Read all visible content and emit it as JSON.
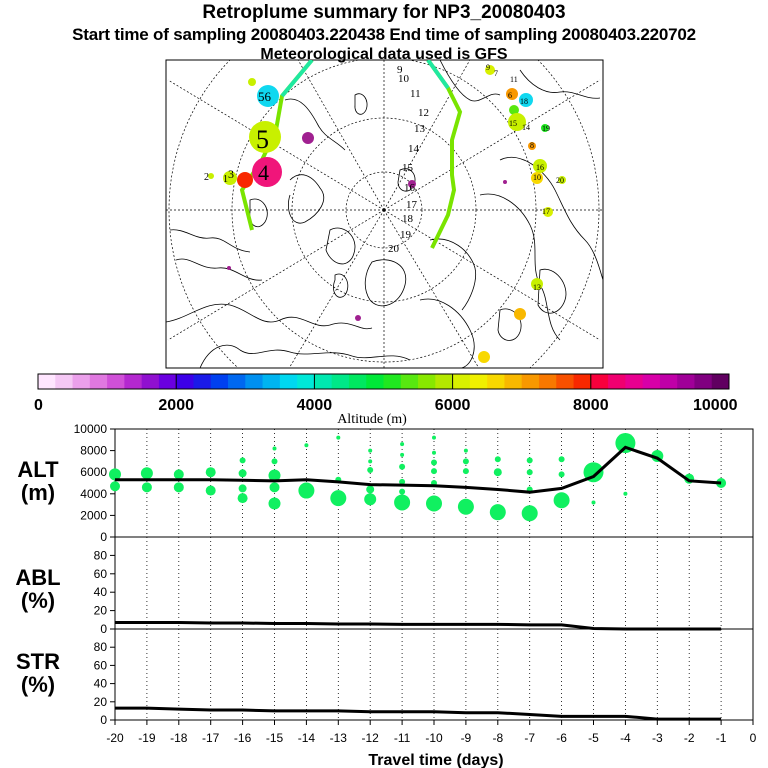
{
  "header": {
    "title": "Retroplume summary for NP3_20080403",
    "sampling_line": "Start time of sampling 20080403.220438     End time of sampling 20080403.220702",
    "met_line": "Meteorological data used is GFS"
  },
  "colorbar": {
    "axis_label": "Altitude (m)",
    "ticks": [
      "0",
      "2000",
      "4000",
      "6000",
      "8000",
      "10000"
    ],
    "tick_values": [
      0,
      2000,
      4000,
      6000,
      8000,
      10000
    ],
    "range": [
      0,
      10000
    ],
    "colors": [
      "#ffe6ff",
      "#f5c8f5",
      "#eba0eb",
      "#e078e0",
      "#d050d8",
      "#b428d0",
      "#9010d0",
      "#6a00e0",
      "#3c00e8",
      "#1a1ae8",
      "#0040f0",
      "#0068f0",
      "#0090f0",
      "#00b4f0",
      "#00d8f0",
      "#00e8d8",
      "#00e8b0",
      "#00e888",
      "#00e860",
      "#00e838",
      "#20e820",
      "#58e810",
      "#88e800",
      "#b4e800",
      "#d8f000",
      "#f0f000",
      "#f8d800",
      "#f8b800",
      "#f89800",
      "#f87800",
      "#f85000",
      "#f82800",
      "#f8003c",
      "#f00070",
      "#e80090",
      "#d800a8",
      "#c000a8",
      "#a00098",
      "#800080",
      "#600060"
    ]
  },
  "map": {
    "trajectory_labels": [
      "1",
      "2",
      "3",
      "4",
      "5",
      "56"
    ],
    "day_labels": [
      "9",
      "10",
      "11",
      "12",
      "13",
      "14",
      "15",
      "16",
      "17",
      "18",
      "19",
      "20"
    ],
    "small_labels": [
      "7",
      "6",
      "11",
      "13",
      "15",
      "16",
      "17",
      "18",
      "19",
      "20",
      "14",
      "10",
      "8",
      "9"
    ],
    "cluster_colors": {
      "green_line": "#7ae400",
      "cyan_line": "#20e8a0",
      "magenta": "#f0157a",
      "yellow_green": "#c8f000",
      "cyan": "#10d8f0",
      "orange": "#f89800",
      "red": "#f82800",
      "purple": "#a02090"
    }
  },
  "chart_data": [
    {
      "type": "scatter",
      "name": "ALT",
      "ylabel": "ALT (m)",
      "ylabel_lines": [
        "ALT",
        "(m)"
      ],
      "ylim": [
        0,
        10000
      ],
      "yticks": [
        0,
        2000,
        4000,
        6000,
        8000,
        10000
      ],
      "ytick_labels": [
        "0",
        "2000",
        "4000",
        "6000",
        "8000",
        "10000"
      ],
      "xlim": [
        -20,
        0
      ],
      "line": {
        "x": [
          -20,
          -19,
          -18,
          -17,
          -16,
          -15,
          -14,
          -13,
          -12,
          -11,
          -10,
          -9,
          -8,
          -7,
          -6,
          -5,
          -4,
          -3,
          -2,
          -1
        ],
        "y": [
          5300,
          5300,
          5300,
          5300,
          5250,
          5200,
          5300,
          5100,
          4850,
          4800,
          4750,
          4600,
          4400,
          4150,
          4500,
          5600,
          8300,
          7300,
          5200,
          5000
        ]
      },
      "points": [
        {
          "x": -20,
          "y": 5800,
          "r": 6
        },
        {
          "x": -20,
          "y": 4700,
          "r": 5
        },
        {
          "x": -19,
          "y": 5900,
          "r": 6
        },
        {
          "x": -19,
          "y": 4600,
          "r": 5
        },
        {
          "x": -18,
          "y": 5800,
          "r": 5
        },
        {
          "x": -18,
          "y": 4600,
          "r": 5
        },
        {
          "x": -17,
          "y": 6000,
          "r": 5
        },
        {
          "x": -17,
          "y": 4300,
          "r": 5
        },
        {
          "x": -16,
          "y": 7100,
          "r": 3
        },
        {
          "x": -16,
          "y": 5900,
          "r": 4
        },
        {
          "x": -16,
          "y": 4500,
          "r": 4
        },
        {
          "x": -16,
          "y": 3600,
          "r": 5
        },
        {
          "x": -15,
          "y": 8200,
          "r": 2
        },
        {
          "x": -15,
          "y": 7000,
          "r": 3
        },
        {
          "x": -15,
          "y": 5700,
          "r": 6
        },
        {
          "x": -15,
          "y": 4600,
          "r": 5
        },
        {
          "x": -15,
          "y": 3100,
          "r": 6
        },
        {
          "x": -14,
          "y": 8500,
          "r": 2
        },
        {
          "x": -14,
          "y": 4300,
          "r": 8
        },
        {
          "x": -13,
          "y": 9200,
          "r": 2
        },
        {
          "x": -13,
          "y": 5300,
          "r": 3
        },
        {
          "x": -13,
          "y": 3600,
          "r": 8
        },
        {
          "x": -12,
          "y": 8000,
          "r": 2
        },
        {
          "x": -12,
          "y": 7000,
          "r": 2
        },
        {
          "x": -12,
          "y": 6200,
          "r": 3
        },
        {
          "x": -12,
          "y": 4400,
          "r": 4
        },
        {
          "x": -12,
          "y": 3500,
          "r": 6
        },
        {
          "x": -11,
          "y": 8600,
          "r": 2
        },
        {
          "x": -11,
          "y": 7600,
          "r": 2
        },
        {
          "x": -11,
          "y": 6500,
          "r": 3
        },
        {
          "x": -11,
          "y": 5100,
          "r": 3
        },
        {
          "x": -11,
          "y": 4200,
          "r": 3
        },
        {
          "x": -11,
          "y": 3200,
          "r": 8
        },
        {
          "x": -10,
          "y": 9200,
          "r": 2
        },
        {
          "x": -10,
          "y": 7800,
          "r": 2
        },
        {
          "x": -10,
          "y": 6900,
          "r": 3
        },
        {
          "x": -10,
          "y": 6100,
          "r": 3
        },
        {
          "x": -10,
          "y": 5000,
          "r": 3
        },
        {
          "x": -10,
          "y": 3100,
          "r": 8
        },
        {
          "x": -9,
          "y": 8000,
          "r": 2
        },
        {
          "x": -9,
          "y": 7000,
          "r": 3
        },
        {
          "x": -9,
          "y": 6100,
          "r": 3
        },
        {
          "x": -9,
          "y": 2800,
          "r": 8
        },
        {
          "x": -8,
          "y": 7200,
          "r": 3
        },
        {
          "x": -8,
          "y": 6000,
          "r": 4
        },
        {
          "x": -8,
          "y": 2300,
          "r": 8
        },
        {
          "x": -7,
          "y": 7100,
          "r": 3
        },
        {
          "x": -7,
          "y": 6000,
          "r": 3
        },
        {
          "x": -7,
          "y": 4400,
          "r": 3
        },
        {
          "x": -7,
          "y": 2200,
          "r": 8
        },
        {
          "x": -6,
          "y": 7200,
          "r": 3
        },
        {
          "x": -6,
          "y": 5800,
          "r": 3
        },
        {
          "x": -6,
          "y": 3400,
          "r": 8
        },
        {
          "x": -5,
          "y": 6000,
          "r": 10
        },
        {
          "x": -5,
          "y": 3200,
          "r": 2
        },
        {
          "x": -4,
          "y": 8700,
          "r": 10
        },
        {
          "x": -4,
          "y": 4000,
          "r": 2
        },
        {
          "x": -3,
          "y": 7500,
          "r": 6
        },
        {
          "x": -2,
          "y": 5400,
          "r": 5
        },
        {
          "x": -1,
          "y": 5000,
          "r": 5
        }
      ],
      "point_color": "#10f060"
    },
    {
      "type": "line",
      "name": "ABL",
      "ylabel": "ABL (%)",
      "ylabel_lines": [
        "ABL",
        "(%)"
      ],
      "ylim": [
        0,
        100
      ],
      "yticks": [
        0,
        20,
        40,
        60,
        80
      ],
      "ytick_labels": [
        "0",
        "20",
        "40",
        "60",
        "80"
      ],
      "xlim": [
        -20,
        0
      ],
      "x": [
        -20,
        -19,
        -18,
        -17,
        -16,
        -15,
        -14,
        -13,
        -12,
        -11,
        -10,
        -9,
        -8,
        -7,
        -6,
        -5,
        -4,
        -3,
        -2,
        -1
      ],
      "y": [
        7,
        7,
        7,
        6.5,
        6.5,
        6,
        6,
        5.5,
        5.5,
        5,
        5,
        5,
        5,
        4.5,
        4.5,
        0.5,
        0,
        0,
        0,
        0
      ]
    },
    {
      "type": "line",
      "name": "STR",
      "ylabel": "STR (%)",
      "ylabel_lines": [
        "STR",
        "(%)"
      ],
      "ylim": [
        0,
        100
      ],
      "yticks": [
        0,
        20,
        40,
        60,
        80
      ],
      "ytick_labels": [
        "0",
        "20",
        "40",
        "60",
        "80"
      ],
      "xlim": [
        -20,
        0
      ],
      "xlabel": "Travel time (days)",
      "xticks": [
        -20,
        -19,
        -18,
        -17,
        -16,
        -15,
        -14,
        -13,
        -12,
        -11,
        -10,
        -9,
        -8,
        -7,
        -6,
        -5,
        -4,
        -3,
        -2,
        -1,
        0
      ],
      "xtick_labels": [
        "-20",
        "-19",
        "-18",
        "-17",
        "-16",
        "-15",
        "-14",
        "-13",
        "-12",
        "-11",
        "-10",
        "-9",
        "-8",
        "-7",
        "-6",
        "-5",
        "-4",
        "-3",
        "-2",
        "-1",
        "0"
      ],
      "x": [
        -20,
        -19,
        -18,
        -17,
        -16,
        -15,
        -14,
        -13,
        -12,
        -11,
        -10,
        -9,
        -8,
        -7,
        -6,
        -5,
        -4,
        -3,
        -2,
        -1
      ],
      "y": [
        13,
        13,
        12,
        11,
        11,
        10,
        10,
        10,
        9,
        9,
        9,
        8,
        8,
        6,
        4,
        4,
        4,
        1,
        1,
        1
      ]
    }
  ]
}
